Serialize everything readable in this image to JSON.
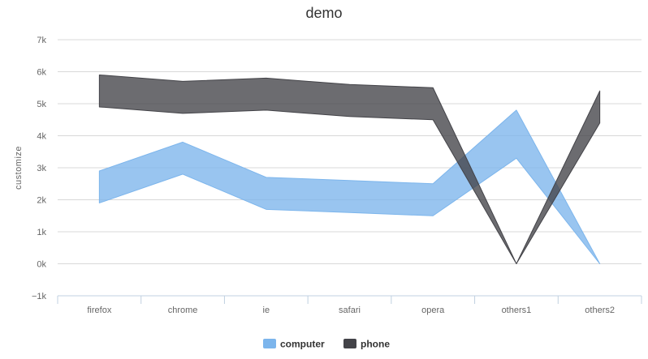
{
  "chart_data": {
    "type": "area",
    "subtype": "arearange",
    "title": "demo",
    "xlabel": "",
    "ylabel": "customize",
    "categories": [
      "firefox",
      "chrome",
      "ie",
      "safari",
      "opera",
      "others1",
      "others2"
    ],
    "ylim": [
      -1000,
      7000
    ],
    "yticks": [
      -1000,
      0,
      1000,
      2000,
      3000,
      4000,
      5000,
      6000,
      7000
    ],
    "ytick_labels": [
      "−1k",
      "0k",
      "1k",
      "2k",
      "3k",
      "4k",
      "5k",
      "6k",
      "7k"
    ],
    "grid": true,
    "legend_position": "bottom-center",
    "series": [
      {
        "name": "computer",
        "color": "#7cb5ec",
        "low": [
          1900,
          2800,
          1700,
          1600,
          1500,
          3300,
          0
        ],
        "high": [
          2900,
          3800,
          2700,
          2600,
          2500,
          4800,
          0
        ]
      },
      {
        "name": "phone",
        "color": "#434348",
        "low": [
          4900,
          4700,
          4800,
          4600,
          4500,
          0,
          4400
        ],
        "high": [
          5900,
          5700,
          5800,
          5600,
          5500,
          0,
          5400
        ]
      }
    ]
  }
}
